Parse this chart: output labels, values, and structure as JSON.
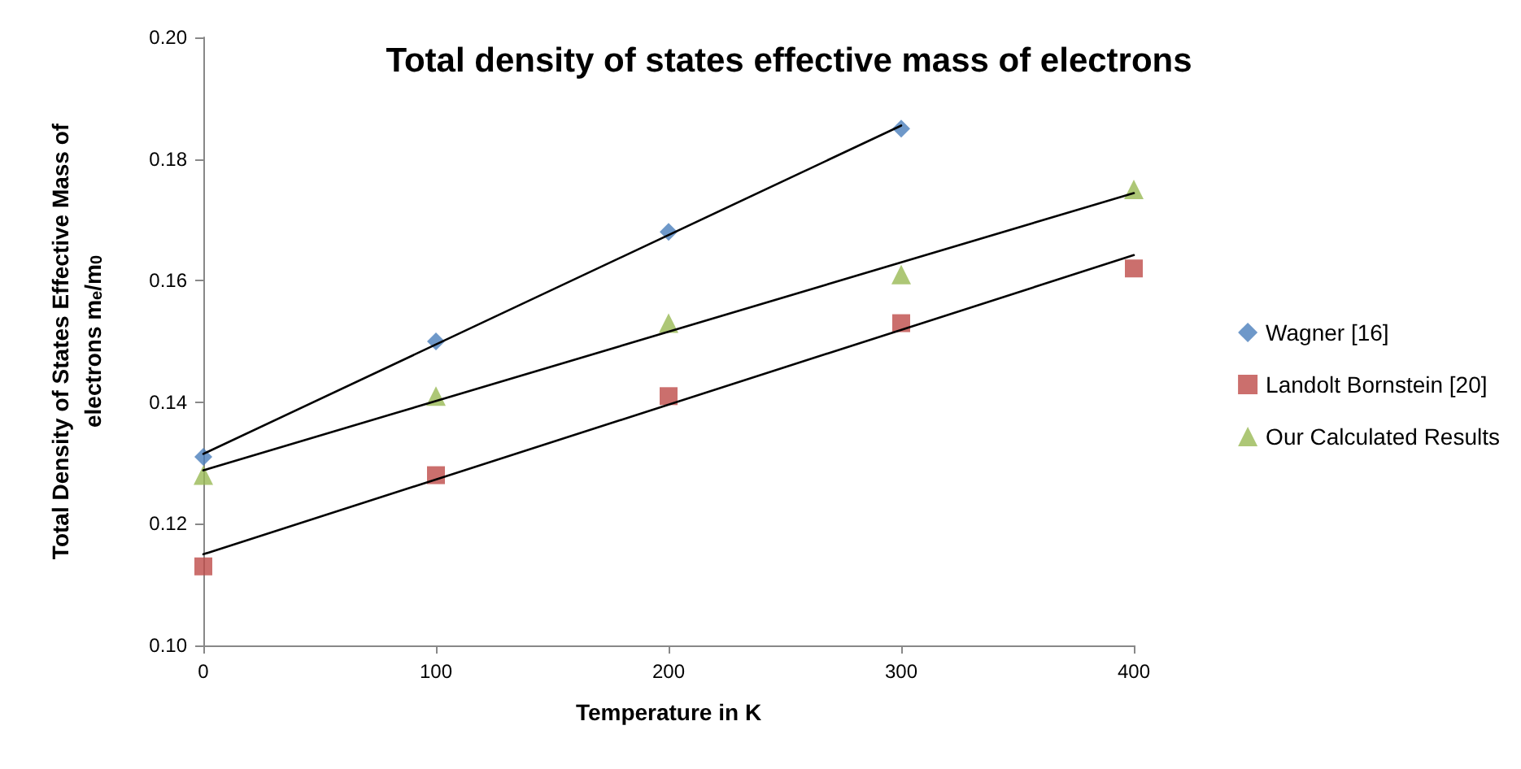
{
  "chart_data": {
    "type": "scatter",
    "title": "Total density of states effective mass of electrons",
    "xlabel": "Temperature in K",
    "ylabel": "Total Density of States Effective Mass of electrons m$_{e}$/m$_{0}$",
    "x": [
      0,
      100,
      200,
      300,
      400
    ],
    "series": [
      {
        "name": "Wagner [16]",
        "color": "#4a7ebb",
        "marker": "diamond",
        "x": [
          0,
          100,
          200,
          300
        ],
        "values": [
          0.131,
          0.15,
          0.168,
          0.185
        ]
      },
      {
        "name": "Landolt Bornstein [20]",
        "color": "#be4b48",
        "marker": "square",
        "values": [
          0.113,
          0.128,
          0.141,
          0.153,
          0.162
        ]
      },
      {
        "name": "Our Calculated Results",
        "color": "#98b954",
        "marker": "triangle",
        "values": [
          0.128,
          0.141,
          0.153,
          0.161,
          0.175
        ]
      },
      {
        "type": "line",
        "color": "#000000",
        "marker": "none",
        "x": [
          0,
          300
        ],
        "values": [
          0.1315,
          0.1855
        ]
      },
      {
        "type": "line",
        "color": "#000000",
        "marker": "none",
        "x": [
          0,
          400
        ],
        "values": [
          0.115,
          0.1642
        ]
      },
      {
        "type": "line",
        "color": "#000000",
        "marker": "none",
        "x": [
          0,
          400
        ],
        "values": [
          0.1288,
          0.1744
        ]
      }
    ],
    "xlim": [
      0,
      400
    ],
    "xticks": [
      0,
      100,
      200,
      300,
      400
    ],
    "ylim": [
      0.1,
      0.2
    ],
    "yticks": [
      {
        "value": 0.1,
        "label": "0.10"
      },
      {
        "value": 0.12,
        "label": "0.12"
      },
      {
        "value": 0.14,
        "label": "0.14"
      },
      {
        "value": 0.16,
        "label": "0.16"
      },
      {
        "value": 0.18,
        "label": "0.18"
      },
      {
        "value": 0.2,
        "label": "0.20"
      }
    ],
    "grid": false,
    "legend": "right"
  }
}
